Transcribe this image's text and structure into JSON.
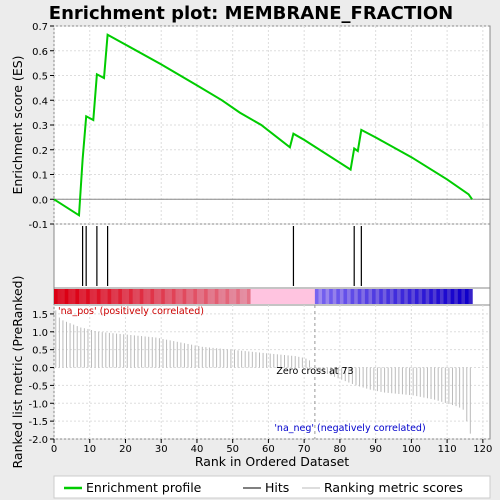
{
  "chart_data": {
    "type": "line",
    "title": "Enrichment plot: MEMBRANE_FRACTION",
    "xlabel": "Rank in Ordered Dataset",
    "ylabel_top": "Enrichment score (ES)",
    "ylabel_bottom": "Ranked list metric (PreRanked)",
    "xlim": [
      0,
      122
    ],
    "x_ticks": [
      0,
      10,
      20,
      30,
      40,
      50,
      60,
      70,
      80,
      90,
      100,
      110,
      120
    ],
    "es_ylim": [
      -0.1,
      0.7
    ],
    "es_ticks": [
      "-0.1",
      "0.0",
      "0.1",
      "0.2",
      "0.3",
      "0.4",
      "0.5",
      "0.6",
      "0.7"
    ],
    "metric_ylim": [
      -2.0,
      1.75
    ],
    "metric_ticks": [
      "-2.0",
      "-1.5",
      "-1.0",
      "-0.5",
      "0.0",
      "0.5",
      "1.0",
      "1.5"
    ],
    "series": [
      {
        "name": "Enrichment profile",
        "color": "#00cc00",
        "points": [
          [
            0,
            0.0
          ],
          [
            7,
            -0.065
          ],
          [
            8,
            0.16
          ],
          [
            9,
            0.335
          ],
          [
            11,
            0.32
          ],
          [
            12,
            0.505
          ],
          [
            14,
            0.49
          ],
          [
            15,
            0.665
          ],
          [
            20,
            0.625
          ],
          [
            30,
            0.545
          ],
          [
            40,
            0.46
          ],
          [
            47,
            0.4
          ],
          [
            52,
            0.35
          ],
          [
            58,
            0.3
          ],
          [
            66,
            0.21
          ],
          [
            67,
            0.265
          ],
          [
            70,
            0.24
          ],
          [
            83,
            0.12
          ],
          [
            84,
            0.205
          ],
          [
            85,
            0.195
          ],
          [
            86,
            0.28
          ],
          [
            90,
            0.25
          ],
          [
            100,
            0.17
          ],
          [
            110,
            0.08
          ],
          [
            116,
            0.02
          ],
          [
            117,
            0.0
          ]
        ]
      }
    ],
    "hits": [
      8,
      9,
      12,
      15,
      67,
      84,
      86
    ],
    "zero_cross_rank": 73,
    "max_rank": 117,
    "metric_values": [
      1.6,
      1.4,
      1.32,
      1.28,
      1.24,
      1.2,
      1.16,
      1.12,
      1.1,
      1.08,
      1.05,
      1.02,
      1.0,
      0.99,
      0.98,
      0.97,
      0.96,
      0.95,
      0.94,
      0.93,
      0.92,
      0.91,
      0.9,
      0.89,
      0.88,
      0.87,
      0.86,
      0.85,
      0.84,
      0.82,
      0.8,
      0.78,
      0.76,
      0.74,
      0.72,
      0.7,
      0.68,
      0.66,
      0.64,
      0.62,
      0.6,
      0.58,
      0.57,
      0.56,
      0.55,
      0.54,
      0.53,
      0.52,
      0.51,
      0.5,
      0.49,
      0.48,
      0.47,
      0.46,
      0.45,
      0.44,
      0.43,
      0.42,
      0.41,
      0.4,
      0.39,
      0.38,
      0.37,
      0.36,
      0.35,
      0.34,
      0.33,
      0.32,
      0.3,
      0.28,
      0.25,
      0.2,
      0.0,
      -0.05,
      -0.1,
      -0.14,
      -0.18,
      -0.22,
      -0.26,
      -0.3,
      -0.34,
      -0.38,
      -0.42,
      -0.46,
      -0.5,
      -0.53,
      -0.56,
      -0.59,
      -0.62,
      -0.64,
      -0.66,
      -0.68,
      -0.7,
      -0.71,
      -0.72,
      -0.73,
      -0.74,
      -0.75,
      -0.76,
      -0.77,
      -0.78,
      -0.8,
      -0.82,
      -0.84,
      -0.86,
      -0.88,
      -0.9,
      -0.93,
      -0.96,
      -0.99,
      -1.02,
      -1.05,
      -1.08,
      -1.12,
      -1.18,
      -1.5,
      -1.85
    ],
    "labels": {
      "pos": "'na_pos' (positively correlated)",
      "neg": "'na_neg' (negatively correlated)",
      "zero_cross": "Zero cross at 73"
    },
    "legend": [
      {
        "label": "Enrichment profile",
        "color": "#00cc00",
        "style": "thick-line"
      },
      {
        "label": "Hits",
        "color": "#000000",
        "style": "line"
      },
      {
        "label": "Ranking metric scores",
        "color": "#bbbbbb",
        "style": "line"
      }
    ],
    "colors": {
      "pos_text": "#cc0000",
      "neg_text": "#0000cc",
      "grid": "#dddddd",
      "background": "#ffffff",
      "page": "#ececec"
    }
  }
}
